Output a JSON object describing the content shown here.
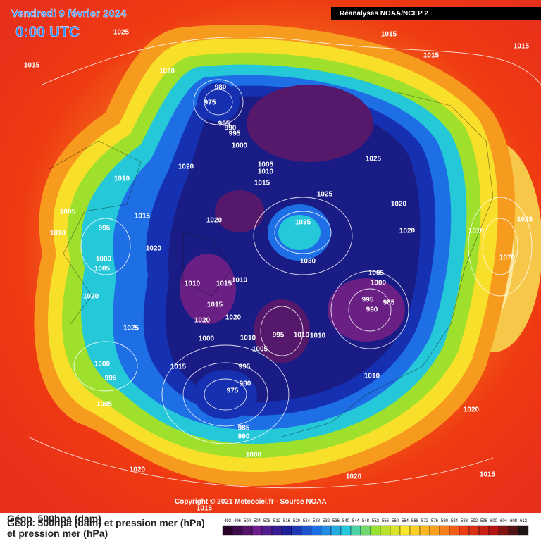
{
  "header": {
    "title": "Vendredi 9 février 2024",
    "time": "0:00 UTC",
    "source_box": "Réanalyses NOAA/NCEP 2"
  },
  "footer": {
    "copyright": "Copyright © 2021 Meteociel.fr - Source NOAA",
    "captions": [
      "Géop. 500hpa (dam)",
      "Géop. 500hpa (dam) et pression mer (hPa)",
      "et pression mer (hPa)"
    ],
    "colorbar_labels": [
      "492",
      "496",
      "500",
      "504",
      "508",
      "512",
      "516",
      "520",
      "524",
      "528",
      "532",
      "536",
      "540",
      "544",
      "548",
      "552",
      "556",
      "560",
      "564",
      "568",
      "572",
      "576",
      "580",
      "584",
      "588",
      "592",
      "596",
      "600",
      "604",
      "608",
      "612"
    ]
  },
  "isobar_labels": [
    "1025",
    "1015",
    "1020",
    "980",
    "975",
    "985",
    "990",
    "995",
    "1000",
    "1005",
    "1010",
    "1015",
    "1015",
    "1015",
    "1015",
    "1025",
    "1025",
    "1020",
    "1020",
    "1010",
    "1025",
    "1070",
    "1035",
    "1030",
    "1005",
    "1000",
    "995",
    "985",
    "990",
    "1020",
    "1010",
    "1005",
    "1010",
    "995",
    "1015",
    "1020",
    "1020",
    "1000",
    "1005",
    "1020",
    "1025",
    "1010",
    "1015",
    "1010",
    "1015",
    "1020",
    "1020",
    "1000",
    "1010",
    "1005",
    "995",
    "1010",
    "1010",
    "1010",
    "1015",
    "995",
    "1000",
    "995",
    "980",
    "975",
    "1005",
    "985",
    "990",
    "1000",
    "1020",
    "1020",
    "1020",
    "1015",
    "1015"
  ]
}
